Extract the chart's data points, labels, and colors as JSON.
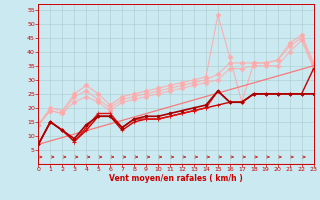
{
  "xlabel": "Vent moyen/en rafales ( km/h )",
  "xlim": [
    0,
    23
  ],
  "ylim": [
    0,
    57
  ],
  "yticks": [
    5,
    10,
    15,
    20,
    25,
    30,
    35,
    40,
    45,
    50,
    55
  ],
  "xticks": [
    0,
    1,
    2,
    3,
    4,
    5,
    6,
    7,
    8,
    9,
    10,
    11,
    12,
    13,
    14,
    15,
    16,
    17,
    18,
    19,
    20,
    21,
    22,
    23
  ],
  "bg_color": "#cbe9f0",
  "grid_color": "#aacccc",
  "series": [
    {
      "color": "#ffaaaa",
      "alpha": 0.9,
      "lw": 0.8,
      "marker": "D",
      "ms": 2.5,
      "mfc": "#ffaaaa",
      "x": [
        0,
        1,
        2,
        3,
        4,
        5,
        6,
        7,
        8,
        9,
        10,
        11,
        12,
        13,
        14,
        15,
        16,
        17,
        18,
        19,
        20,
        21,
        22,
        23
      ],
      "y": [
        14,
        20,
        19,
        25,
        28,
        25,
        21,
        24,
        25,
        26,
        27,
        28,
        29,
        30,
        31,
        53,
        38,
        22,
        36,
        36,
        37,
        43,
        46,
        36
      ]
    },
    {
      "color": "#ffaaaa",
      "alpha": 0.85,
      "lw": 0.8,
      "marker": "D",
      "ms": 2.5,
      "mfc": "#ffaaaa",
      "x": [
        0,
        1,
        2,
        3,
        4,
        5,
        6,
        7,
        8,
        9,
        10,
        11,
        12,
        13,
        14,
        15,
        16,
        17,
        18,
        19,
        20,
        21,
        22,
        23
      ],
      "y": [
        14,
        19,
        18,
        24,
        26,
        23,
        20,
        23,
        24,
        25,
        26,
        27,
        28,
        29,
        30,
        32,
        36,
        36,
        36,
        36,
        37,
        42,
        45,
        35
      ]
    },
    {
      "color": "#ffaaaa",
      "alpha": 0.8,
      "lw": 0.8,
      "marker": "D",
      "ms": 2.5,
      "mfc": "#ffaaaa",
      "x": [
        0,
        1,
        2,
        3,
        4,
        5,
        6,
        7,
        8,
        9,
        10,
        11,
        12,
        13,
        14,
        15,
        16,
        17,
        18,
        19,
        20,
        21,
        22,
        23
      ],
      "y": [
        14,
        19,
        18,
        22,
        24,
        22,
        19,
        22,
        23,
        24,
        25,
        26,
        27,
        28,
        29,
        30,
        34,
        34,
        35,
        35,
        35,
        40,
        44,
        34
      ]
    },
    {
      "color": "#ff6666",
      "alpha": 0.85,
      "lw": 0.9,
      "marker": null,
      "ms": 0,
      "mfc": "#ff6666",
      "x": [
        0,
        23
      ],
      "y": [
        7,
        35
      ]
    },
    {
      "color": "#cc0000",
      "alpha": 1.0,
      "lw": 1.0,
      "marker": "+",
      "ms": 3,
      "mfc": "#cc0000",
      "x": [
        0,
        1,
        2,
        3,
        4,
        5,
        6,
        7,
        8,
        9,
        10,
        11,
        12,
        13,
        14,
        15,
        16,
        17,
        18,
        19,
        20,
        21,
        22,
        23
      ],
      "y": [
        7,
        15,
        12,
        8,
        12,
        17,
        17,
        12,
        15,
        16,
        16,
        17,
        18,
        19,
        20,
        21,
        22,
        22,
        25,
        25,
        25,
        25,
        25,
        34
      ]
    },
    {
      "color": "#dd1111",
      "alpha": 1.0,
      "lw": 1.0,
      "marker": "+",
      "ms": 3,
      "mfc": "#dd1111",
      "x": [
        0,
        1,
        2,
        3,
        4,
        5,
        6,
        7,
        8,
        9,
        10,
        11,
        12,
        13,
        14,
        15,
        16,
        17,
        18,
        19,
        20,
        21,
        22,
        23
      ],
      "y": [
        7,
        15,
        12,
        8,
        13,
        18,
        18,
        13,
        16,
        16,
        16,
        17,
        18,
        19,
        20,
        26,
        22,
        22,
        25,
        25,
        25,
        25,
        25,
        25
      ]
    },
    {
      "color": "#aa0000",
      "alpha": 1.0,
      "lw": 1.2,
      "marker": "o",
      "ms": 2,
      "mfc": "#aa0000",
      "x": [
        0,
        1,
        2,
        3,
        4,
        5,
        6,
        7,
        8,
        9,
        10,
        11,
        12,
        13,
        14,
        15,
        16,
        17,
        18,
        19,
        20,
        21,
        22,
        23
      ],
      "y": [
        7,
        15,
        12,
        9,
        14,
        17,
        17,
        13,
        16,
        17,
        17,
        18,
        19,
        20,
        21,
        26,
        22,
        22,
        25,
        25,
        25,
        25,
        25,
        25
      ]
    }
  ],
  "arrows": {
    "color": "#cc2222",
    "alpha": 0.75,
    "y_data": 2.5,
    "x": [
      0,
      1,
      2,
      3,
      4,
      5,
      6,
      7,
      8,
      9,
      10,
      11,
      12,
      13,
      14,
      15,
      16,
      17,
      18,
      19,
      20,
      21,
      22,
      23
    ]
  }
}
